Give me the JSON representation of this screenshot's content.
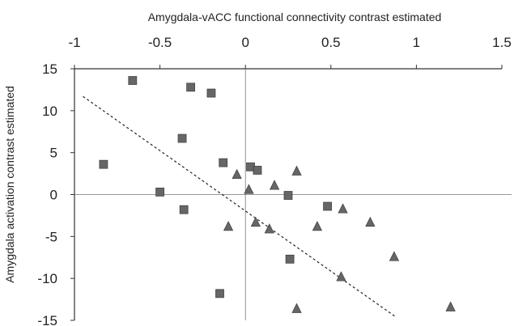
{
  "chart_data": {
    "type": "scatter",
    "title": "",
    "xlabel": "Amygdala-vACC  functional connectivity contrast estimated",
    "ylabel": "Amygdala activation contrast estimated",
    "xlim": [
      -1,
      1.5
    ],
    "ylim": [
      -15,
      15
    ],
    "x_ticks": [
      "-1",
      "-0.5",
      "0",
      "0.5",
      "1",
      "1.5"
    ],
    "y_ticks": [
      "15",
      "10",
      "5",
      "0",
      "-5",
      "-10",
      "-15"
    ],
    "grid": false,
    "x_axis_position": "top",
    "colors": {
      "square": "#666666",
      "triangle": "#666666",
      "trendline": "#222222",
      "axis": "#333333"
    },
    "series": [
      {
        "marker": "square",
        "points": [
          [
            -0.66,
            13.6
          ],
          [
            -0.32,
            12.8
          ],
          [
            -0.2,
            12.1
          ],
          [
            -0.37,
            6.7
          ],
          [
            -0.83,
            3.6
          ],
          [
            -0.13,
            3.8
          ],
          [
            0.03,
            3.3
          ],
          [
            0.07,
            2.9
          ],
          [
            -0.5,
            0.3
          ],
          [
            0.25,
            -0.1
          ],
          [
            -0.36,
            -1.8
          ],
          [
            0.48,
            -1.4
          ],
          [
            0.26,
            -7.7
          ],
          [
            -0.15,
            -11.8
          ]
        ]
      },
      {
        "marker": "triangle",
        "points": [
          [
            -0.05,
            2.4
          ],
          [
            0.17,
            1.1
          ],
          [
            0.3,
            2.8
          ],
          [
            0.02,
            0.6
          ],
          [
            -0.1,
            -3.8
          ],
          [
            0.06,
            -3.3
          ],
          [
            0.14,
            -4.1
          ],
          [
            0.42,
            -3.8
          ],
          [
            0.57,
            -1.7
          ],
          [
            0.73,
            -3.3
          ],
          [
            0.87,
            -7.4
          ],
          [
            0.56,
            -9.8
          ],
          [
            0.3,
            -13.6
          ],
          [
            1.2,
            -13.4
          ]
        ]
      },
      {
        "type": "trendline",
        "points": [
          [
            -0.95,
            11.7
          ],
          [
            0.88,
            -14.6
          ]
        ]
      }
    ]
  }
}
